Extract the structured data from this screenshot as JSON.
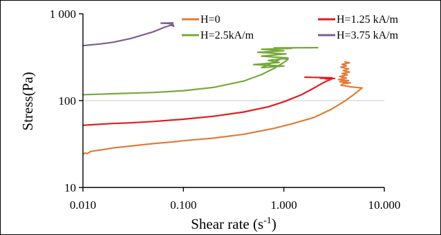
{
  "chart_data": {
    "type": "line",
    "title": "",
    "xlabel": "Shear rate (s-1)",
    "ylabel": "Stress(Pa)",
    "x_scale": "log",
    "y_scale": "log",
    "xlim": [
      0.01,
      10
    ],
    "ylim": [
      10,
      1000
    ],
    "x_tick_labels": [
      "0.010",
      "0.100",
      "1.000",
      "10.000"
    ],
    "x_tick_values": [
      0.01,
      0.1,
      1,
      10
    ],
    "y_tick_labels": [
      "10",
      "100",
      "1 000"
    ],
    "y_tick_values": [
      10,
      100,
      1000
    ],
    "gridlines_y": [
      100
    ],
    "legend_position": "top-right",
    "series": [
      {
        "name": "H=0",
        "color": "#E07B39",
        "points": [
          [
            0.01,
            24
          ],
          [
            0.0105,
            25
          ],
          [
            0.011,
            24.5
          ],
          [
            0.012,
            26
          ],
          [
            0.015,
            27
          ],
          [
            0.02,
            28.5
          ],
          [
            0.03,
            30
          ],
          [
            0.05,
            32
          ],
          [
            0.08,
            33.5
          ],
          [
            0.1,
            34.5
          ],
          [
            0.2,
            37
          ],
          [
            0.4,
            41
          ],
          [
            0.8,
            48
          ],
          [
            1.2,
            54
          ],
          [
            2,
            64
          ],
          [
            3,
            80
          ],
          [
            4,
            98
          ],
          [
            5,
            118
          ],
          [
            6,
            140
          ],
          [
            5.2,
            142
          ],
          [
            4.6,
            144
          ],
          [
            4.1,
            148
          ],
          [
            3.7,
            150
          ],
          [
            3.9,
            157
          ],
          [
            4.6,
            160
          ],
          [
            3.6,
            165
          ],
          [
            4.4,
            170
          ],
          [
            3.5,
            175
          ],
          [
            4.2,
            182
          ],
          [
            3.6,
            190
          ],
          [
            4.3,
            198
          ],
          [
            3.8,
            205
          ],
          [
            4.5,
            213
          ],
          [
            3.9,
            222
          ],
          [
            4.4,
            232
          ],
          [
            3.7,
            242
          ],
          [
            4.2,
            252
          ],
          [
            3.8,
            262
          ],
          [
            4.5,
            272
          ],
          [
            4.0,
            280
          ]
        ]
      },
      {
        "name": "H=1.25 kA/m",
        "color": "#E41A1A",
        "points": [
          [
            0.01,
            52
          ],
          [
            0.015,
            53.5
          ],
          [
            0.02,
            54.5
          ],
          [
            0.03,
            55.5
          ],
          [
            0.05,
            57.5
          ],
          [
            0.1,
            61
          ],
          [
            0.2,
            66
          ],
          [
            0.4,
            74
          ],
          [
            0.7,
            85
          ],
          [
            1,
            97
          ],
          [
            1.5,
            117
          ],
          [
            2,
            140
          ],
          [
            2.5,
            162
          ],
          [
            2.8,
            172
          ],
          [
            3,
            177
          ],
          [
            2.6,
            178
          ],
          [
            3.2,
            180
          ],
          [
            2.3,
            181
          ],
          [
            3.0,
            183
          ],
          [
            2.0,
            185
          ],
          [
            1.6,
            186
          ]
        ]
      },
      {
        "name": "H=2.5kA/m",
        "color": "#76A83A",
        "points": [
          [
            0.01,
            117
          ],
          [
            0.015,
            118.5
          ],
          [
            0.02,
            120
          ],
          [
            0.05,
            124
          ],
          [
            0.1,
            130
          ],
          [
            0.2,
            142
          ],
          [
            0.4,
            168
          ],
          [
            0.6,
            200
          ],
          [
            0.8,
            235
          ],
          [
            1,
            275
          ],
          [
            1.1,
            300
          ],
          [
            0.95,
            305
          ],
          [
            0.6,
            240
          ],
          [
            1.0,
            250
          ],
          [
            0.5,
            260
          ],
          [
            0.9,
            275
          ],
          [
            0.7,
            290
          ],
          [
            1.1,
            310
          ],
          [
            0.6,
            325
          ],
          [
            1.05,
            345
          ],
          [
            0.55,
            360
          ],
          [
            1.0,
            375
          ],
          [
            0.6,
            390
          ],
          [
            1.2,
            400
          ],
          [
            0.8,
            405
          ],
          [
            2.2,
            408
          ]
        ]
      },
      {
        "name": "H=3.75 kA/m",
        "color": "#7B5C8F",
        "points": [
          [
            0.01,
            430
          ],
          [
            0.015,
            450
          ],
          [
            0.02,
            470
          ],
          [
            0.03,
            520
          ],
          [
            0.05,
            620
          ],
          [
            0.065,
            700
          ],
          [
            0.075,
            740
          ],
          [
            0.08,
            720
          ],
          [
            0.078,
            760
          ],
          [
            0.07,
            775
          ],
          [
            0.06,
            780
          ],
          [
            0.08,
            785
          ]
        ]
      }
    ]
  }
}
